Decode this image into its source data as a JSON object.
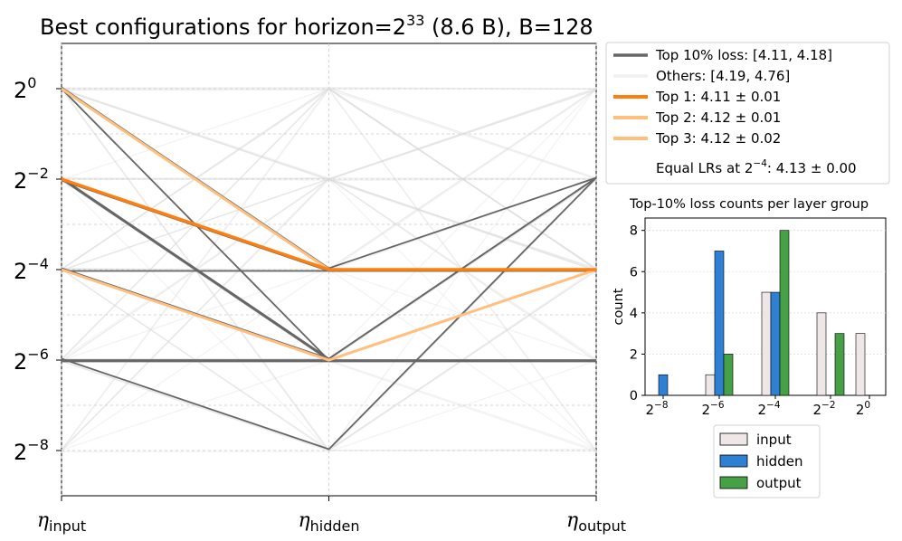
{
  "chart_data": [
    {
      "type": "parallel-coordinates",
      "title_prefix": "Best configurations for horizon=2",
      "title_exp": "33",
      "title_suffix": " (8.6 B), B=128",
      "axes": [
        {
          "sym": "η",
          "sub": "input"
        },
        {
          "sym": "η",
          "sub": "hidden"
        },
        {
          "sym": "η",
          "sub": "output"
        }
      ],
      "y_exponent_range": [
        -9,
        1
      ],
      "y_ticks": [
        {
          "base": "2",
          "exp": "0",
          "value": 0
        },
        {
          "base": "2",
          "exp": "−2",
          "value": -2
        },
        {
          "base": "2",
          "exp": "−4",
          "value": -4
        },
        {
          "base": "2",
          "exp": "−6",
          "value": -6
        },
        {
          "base": "2",
          "exp": "−8",
          "value": -8
        }
      ],
      "minor_grid_values": [
        -1,
        -3,
        -5,
        -7
      ],
      "top10_lines": [
        [
          0,
          -4,
          -2
        ],
        [
          0,
          -6,
          -4
        ],
        [
          -2,
          -4,
          -4
        ],
        [
          -2,
          -6,
          -2
        ],
        [
          -2,
          -6,
          -4
        ],
        [
          -4,
          -4,
          -4
        ],
        [
          -4,
          -6,
          -2
        ],
        [
          -4,
          -6,
          -6
        ],
        [
          -6,
          -6,
          -6
        ],
        [
          -6,
          -8,
          -2
        ],
        [
          -6,
          -6,
          -4
        ]
      ],
      "highlight_lines": [
        {
          "name": "Top 1",
          "values": [
            -2,
            -4,
            -4
          ],
          "color": "#ff7f0e"
        },
        {
          "name": "Top 2",
          "values": [
            0,
            -4,
            -4
          ],
          "color": "#ffbf7e"
        },
        {
          "name": "Top 3",
          "values": [
            -4,
            -6,
            -4
          ],
          "color": "#ffbf7e"
        }
      ],
      "others_count": 60,
      "legend": [
        {
          "label": "Top 10% loss: [4.11, 4.18]",
          "color": "#666666",
          "width": 3.5
        },
        {
          "label": "Others: [4.19, 4.76]",
          "color": "#f0f0f0",
          "width": 3.5
        },
        {
          "label": "Top 1: 4.11 ± 0.01",
          "color": "#ff7f0e",
          "width": 4
        },
        {
          "label": "Top 2: 4.12 ± 0.01",
          "color": "#ffbf7e",
          "width": 4
        },
        {
          "label": "Top 3: 4.12 ± 0.02",
          "color": "#ffbf7e",
          "width": 4
        }
      ],
      "legend_extra_prefix": "Equal LRs at 2",
      "legend_extra_exp": "−4",
      "legend_extra_suffix": ": 4.13 ± 0.00"
    },
    {
      "type": "bar",
      "title": "Top-10% loss counts per layer group",
      "ylabel": "count",
      "ylim": [
        0,
        8.6
      ],
      "y_ticks": [
        "0",
        "2",
        "4",
        "6",
        "8"
      ],
      "categories": [
        {
          "base": "2",
          "exp": "−8"
        },
        {
          "base": "2",
          "exp": "−6"
        },
        {
          "base": "2",
          "exp": "−4"
        },
        {
          "base": "2",
          "exp": "−2"
        },
        {
          "base": "2",
          "exp": "0"
        }
      ],
      "series": [
        {
          "name": "input",
          "color": "#efe6e8",
          "values": [
            0,
            1,
            5,
            4,
            3
          ]
        },
        {
          "name": "hidden",
          "color": "#2f7fd2",
          "values": [
            1,
            7,
            5,
            0,
            0
          ]
        },
        {
          "name": "output",
          "color": "#45a046",
          "values": [
            0,
            2,
            8,
            3,
            0
          ]
        }
      ]
    }
  ]
}
